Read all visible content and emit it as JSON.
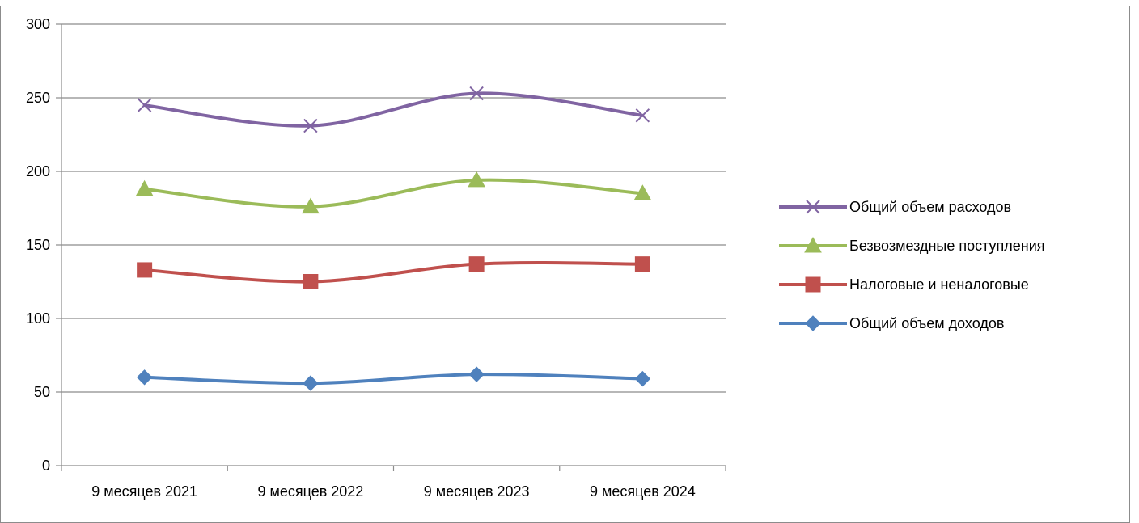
{
  "overflow_text": "...",
  "chart_data": {
    "type": "line",
    "title": "",
    "xlabel": "",
    "ylabel": "",
    "ylim": [
      0,
      300
    ],
    "yticks": [
      0,
      50,
      100,
      150,
      200,
      250,
      300
    ],
    "categories": [
      "9 месяцев 2021",
      "9 месяцев 2022",
      "9 месяцев 2023",
      "9 месяцев 2024"
    ],
    "grid": "horizontal",
    "legend_position": "right",
    "smooth": true,
    "series": [
      {
        "name": "Общий объем расходов",
        "values": [
          245,
          231,
          253,
          238
        ],
        "color": "#8064a2",
        "marker": "x"
      },
      {
        "name": "Безвозмездные поступления",
        "values": [
          188,
          176,
          194,
          185
        ],
        "color": "#9bbb59",
        "marker": "triangle"
      },
      {
        "name": "Налоговые и неналоговые",
        "values": [
          133,
          125,
          137,
          137
        ],
        "color": "#c0504d",
        "marker": "square"
      },
      {
        "name": "Общий объем доходов",
        "values": [
          60,
          56,
          62,
          59
        ],
        "color": "#4f81bd",
        "marker": "diamond"
      }
    ]
  }
}
